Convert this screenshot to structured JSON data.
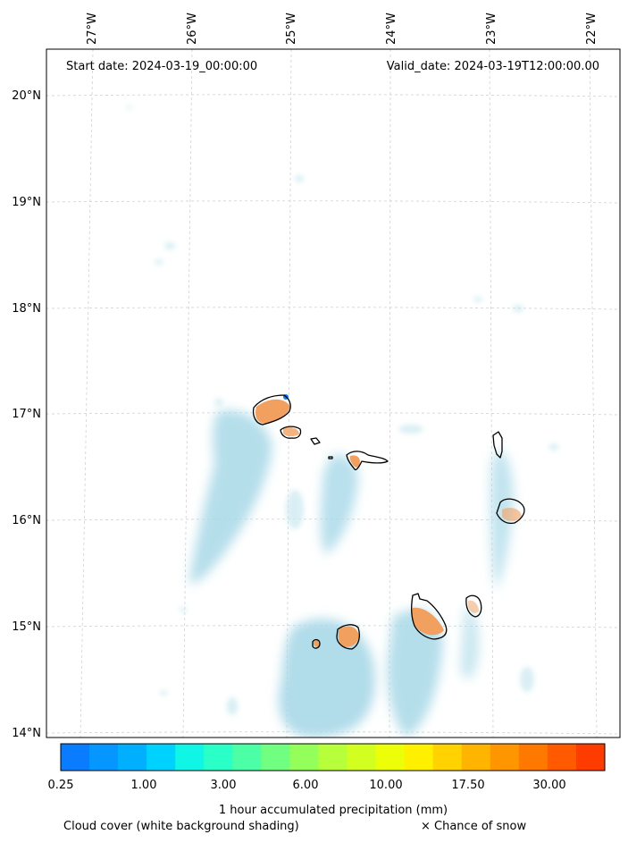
{
  "header": {
    "start_date": "Start date: 2024-03-19_00:00:00",
    "valid_date": "Valid_date: 2024-03-19T12:00:00.00"
  },
  "longitude_ticks": [
    "27°W",
    "26°W",
    "25°W",
    "24°W",
    "23°W",
    "22°W"
  ],
  "latitude_ticks": [
    "20°N",
    "19°N",
    "18°N",
    "17°N",
    "16°N",
    "15°N",
    "14°N"
  ],
  "colorbar": {
    "colors": [
      "#0a7cff",
      "#0596ff",
      "#00b0ff",
      "#00d2ff",
      "#0ff5e6",
      "#2affc8",
      "#4cffa6",
      "#70ff80",
      "#94ff5a",
      "#b6ff3a",
      "#d2ff20",
      "#ecff08",
      "#fff000",
      "#ffd200",
      "#ffb400",
      "#ff9600",
      "#ff7800",
      "#ff5a00",
      "#ff3c00"
    ],
    "tick_labels": [
      "0.25",
      "1.00",
      "3.00",
      "6.00",
      "10.00",
      "17.50",
      "30.00"
    ],
    "label": "1 hour accumulated precipitation (mm)"
  },
  "footer": {
    "cloud_cover": "Cloud cover (white background shading)",
    "snow": "× Chance of snow"
  },
  "style": {
    "cloud_color": "#a8d8e8",
    "precip_orange": "#f2a060",
    "coastline": "#000000",
    "grid": "#cccccc"
  }
}
